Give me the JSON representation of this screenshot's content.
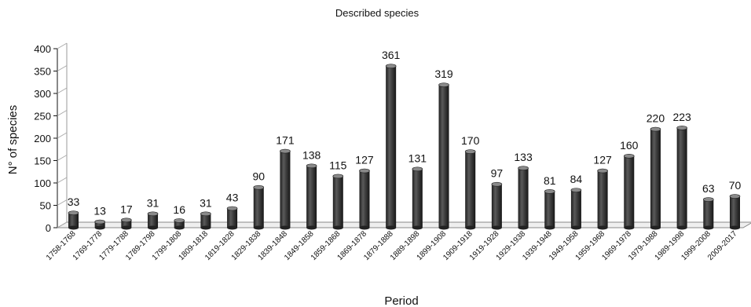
{
  "chart_data": {
    "type": "bar",
    "title": "Described species",
    "xlabel": "Period",
    "ylabel": "N° of species",
    "ylim": [
      0,
      400
    ],
    "yticks": [
      0,
      50,
      100,
      150,
      200,
      250,
      300,
      350,
      400
    ],
    "grid": false,
    "bar_color": "#3d3d3d",
    "categories": [
      "1758-1768",
      "1769-1778",
      "1779-1788",
      "1789-1798",
      "1799-1808",
      "1809-1818",
      "1819-1828",
      "1829-1838",
      "1839-1848",
      "1849-1858",
      "1859-1868",
      "1869-1878",
      "1879-1888",
      "1889-1898",
      "1899-1908",
      "1909-1918",
      "1919-1928",
      "1929-1938",
      "1939-1948",
      "1949-1958",
      "1959-1968",
      "1969-1978",
      "1979-1988",
      "1989-1998",
      "1999-2008",
      "2009-2017"
    ],
    "values": [
      33,
      13,
      17,
      31,
      16,
      31,
      43,
      90,
      171,
      138,
      115,
      127,
      361,
      131,
      319,
      170,
      97,
      133,
      81,
      84,
      127,
      160,
      220,
      223,
      63,
      70
    ]
  }
}
